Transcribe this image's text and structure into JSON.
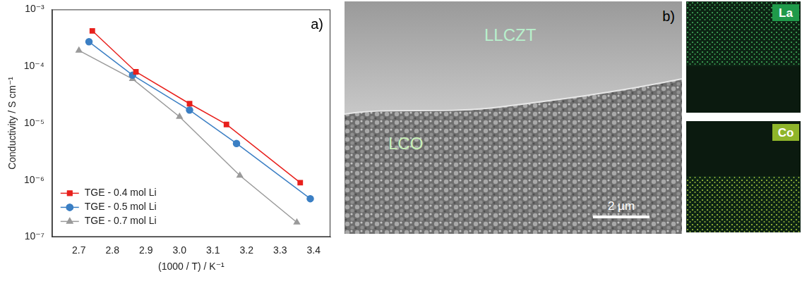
{
  "chart_data": {
    "type": "scatter",
    "annotations": [
      "a)"
    ],
    "x_label": "(1000 / T) / K⁻¹",
    "y_label": "Conductivity / S cm⁻¹",
    "log": "y",
    "grid": false,
    "legend": "lower left",
    "xlim": [
      2.62,
      3.45
    ],
    "xticks": [
      2.7,
      2.8,
      2.9,
      {
        "value": 3,
        "label": "3.0"
      },
      3.1,
      3.2,
      3.3,
      3.4
    ],
    "ylim": [
      1e-07,
      0.001
    ],
    "yticks": [
      {
        "value": 1e-07,
        "label": "10⁻⁷"
      },
      {
        "value": 1e-06,
        "label": "10⁻⁶"
      },
      {
        "value": 1e-05,
        "label": "10⁻⁵"
      },
      {
        "value": 0.0001,
        "label": "10⁻⁴"
      },
      {
        "value": 0.001,
        "label": "10⁻³"
      }
    ],
    "series": [
      {
        "name": "TGE - 0.4 mol Li",
        "color": "#e8201c",
        "marker": "square",
        "line_style": "solid",
        "x": [
          2.74,
          2.87,
          3.03,
          3.14,
          3.36
        ],
        "values": [
          0.00042,
          8e-05,
          2.2e-05,
          9.5e-06,
          9e-07
        ]
      },
      {
        "name": "TGE - 0.5 mol Li",
        "color": "#3b7fc4",
        "marker": "circle",
        "line_style": "solid",
        "x": [
          2.73,
          2.86,
          3.03,
          3.17,
          3.39
        ],
        "values": [
          0.00027,
          7e-05,
          1.7e-05,
          4.4e-06,
          4.7e-07
        ]
      },
      {
        "name": "TGE - 0.7 mol Li",
        "color": "#9a9a9a",
        "marker": "triangle",
        "line_style": "solid",
        "x": [
          2.7,
          2.86,
          3.0,
          3.18,
          3.35
        ],
        "values": [
          0.00019,
          6e-05,
          1.3e-05,
          1.2e-06,
          1.8e-07
        ]
      }
    ]
  },
  "sem_image": {
    "panel": "b)",
    "labels": [
      "LLCZT",
      "LCO"
    ],
    "scale_bar": "2 µm"
  },
  "eds_maps": [
    {
      "label": "La"
    },
    {
      "label": "Co"
    }
  ]
}
